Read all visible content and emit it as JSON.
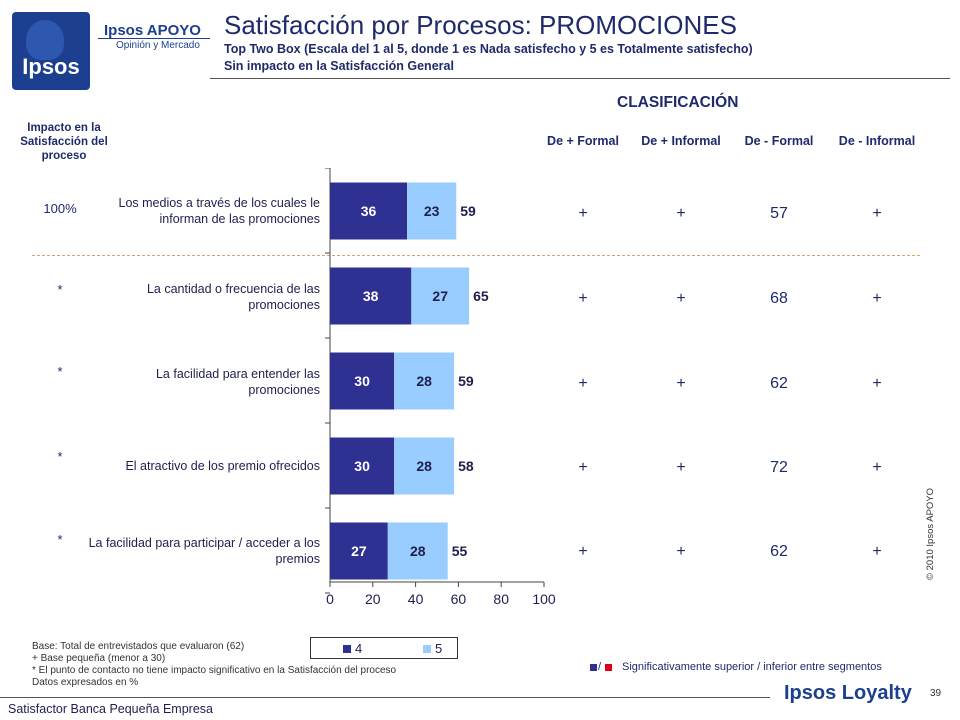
{
  "brand": {
    "logo_text": "Ipsos",
    "apoyo_name": "Ipsos APOYO",
    "apoyo_tagline": "Opinión y Mercado",
    "loyalty_name": "Ipsos Loyalty"
  },
  "header": {
    "title": "Satisfacción por Procesos: PROMOCIONES",
    "subtitle1": "Top Two Box (Escala del 1 al 5, donde 1 es Nada satisfecho y 5 es Totalmente satisfecho)",
    "subtitle2": "Sin impacto en la Satisfacción General"
  },
  "impact_header": "Impacto en la Satisfacción del proceso",
  "classification": {
    "header": "CLASIFICACIÓN",
    "columns": [
      "De + Formal",
      "De + Informal",
      "De - Formal",
      "De - Informal"
    ]
  },
  "rows": [
    {
      "impact": "100%",
      "label": "Los medios a través de los cuales le informan de las promociones",
      "cells": [
        "+",
        "+",
        "57",
        "+"
      ]
    },
    {
      "impact": "*",
      "label": "La cantidad o frecuencia de las promociones",
      "cells": [
        "+",
        "+",
        "68",
        "+"
      ]
    },
    {
      "impact": "*",
      "label": "La facilidad para entender las promociones",
      "cells": [
        "+",
        "+",
        "62",
        "+"
      ]
    },
    {
      "impact": "*",
      "label": "El atractivo de los premio ofrecidos",
      "cells": [
        "+",
        "+",
        "72",
        "+"
      ]
    },
    {
      "impact": "*",
      "label": "La facilidad para participar / acceder a los premios",
      "cells": [
        "+",
        "+",
        "62",
        "+"
      ]
    }
  ],
  "chart_data": {
    "type": "bar",
    "orientation": "horizontal",
    "stacked": true,
    "categories": [
      "Los medios a través de los cuales le informan de las promociones",
      "La cantidad o frecuencia de las promociones",
      "La facilidad para entender las promociones",
      "El atractivo de los premio ofrecidos",
      "La facilidad para participar / acceder a los premios"
    ],
    "series": [
      {
        "name": "4",
        "values": [
          36,
          38,
          30,
          30,
          27
        ],
        "color": "#2e3192"
      },
      {
        "name": "5",
        "values": [
          23,
          27,
          28,
          28,
          28
        ],
        "color": "#99ccff"
      }
    ],
    "totals": [
      59,
      65,
      59,
      58,
      55
    ],
    "xlim": [
      0,
      100
    ],
    "xticks": [
      0,
      20,
      40,
      60,
      80,
      100
    ],
    "legend": "bottom"
  },
  "legend": {
    "items": [
      {
        "label": "4",
        "color": "#2e3192"
      },
      {
        "label": "5",
        "color": "#99ccff"
      }
    ]
  },
  "notes": [
    "Base: Total de entrevistados que evaluaron (62)",
    "+ Base pequeña (menor a 30)",
    "* El punto de contacto no tiene impacto significativo en la Satisfacción del proceso",
    "Datos expresados en %"
  ],
  "significance": {
    "symbol_sep": "/",
    "text": "Significativamente superior / inferior entre segmentos",
    "color_up": "#2e3192",
    "color_down": "#e0001b"
  },
  "copyright": "© 2010 Ipsos APOYO",
  "page_number": "39",
  "footer": "Satisfactor Banca Pequeña Empresa"
}
